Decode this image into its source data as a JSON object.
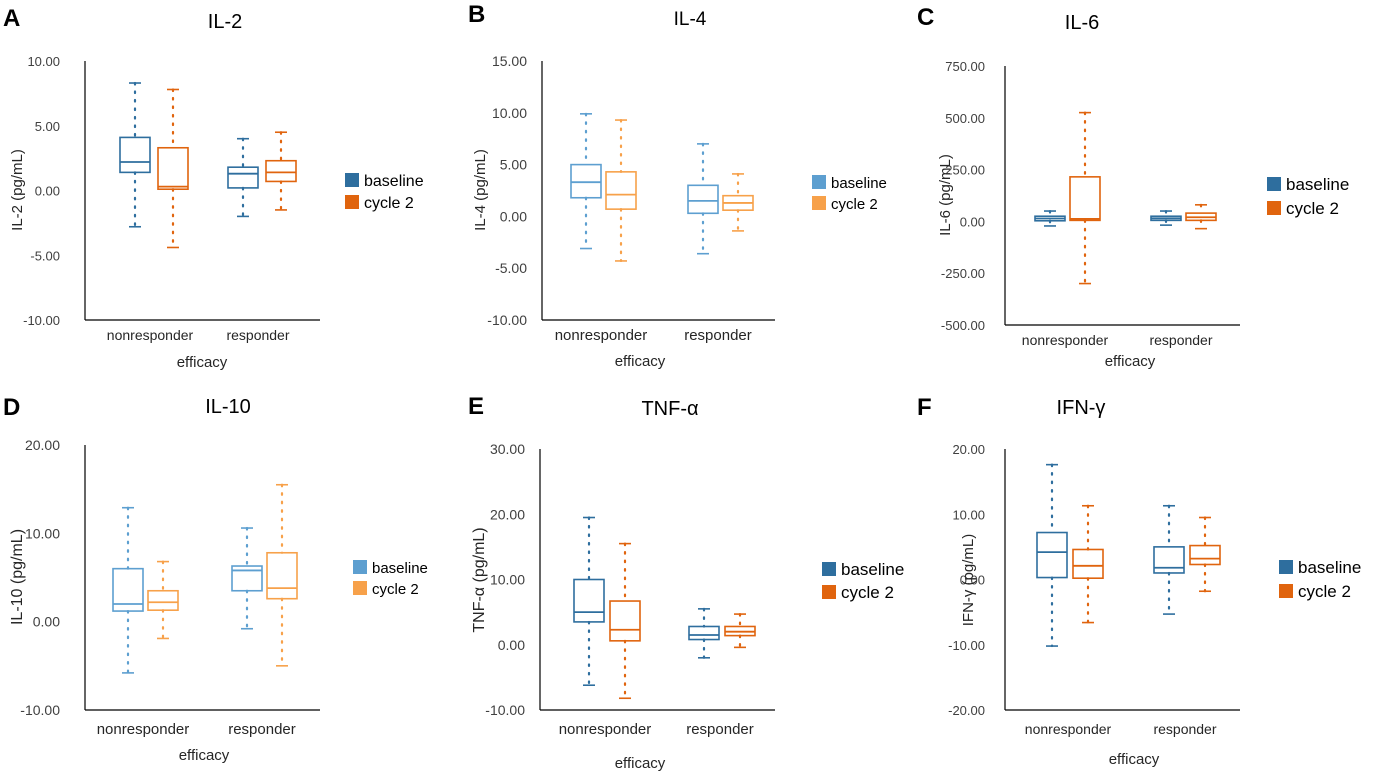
{
  "figure": {
    "panels": [
      "A",
      "B",
      "C",
      "D",
      "E",
      "F"
    ]
  },
  "colors": {
    "dark": {
      "baseline": "#2e6e9e",
      "cycle2": "#e0640e"
    },
    "light": {
      "baseline": "#5d9fd0",
      "cycle2": "#f7a14a"
    }
  },
  "chart_data": [
    {
      "panel": "A",
      "type": "boxplot",
      "title": "IL-2",
      "xlabel": "efficacy",
      "ylabel": "IL-2 (pg/mL)",
      "ylim": [
        -10,
        10
      ],
      "yticks": [
        "10.00",
        "5.00",
        "0.00",
        "-5.00",
        "-10.00"
      ],
      "categories": [
        "nonresponder",
        "responder"
      ],
      "legend": [
        "baseline",
        "cycle 2"
      ],
      "palette": "dark",
      "series": [
        {
          "name": "baseline",
          "boxes": [
            {
              "min": -2.8,
              "q1": 1.4,
              "median": 2.2,
              "q3": 4.1,
              "max": 8.3
            },
            {
              "min": -2.0,
              "q1": 0.2,
              "median": 1.3,
              "q3": 1.8,
              "max": 4.0
            }
          ]
        },
        {
          "name": "cycle 2",
          "boxes": [
            {
              "min": -4.4,
              "q1": 0.1,
              "median": 0.3,
              "q3": 3.3,
              "max": 7.8
            },
            {
              "min": -1.5,
              "q1": 0.7,
              "median": 1.4,
              "q3": 2.3,
              "max": 4.5
            }
          ]
        }
      ]
    },
    {
      "panel": "B",
      "type": "boxplot",
      "title": "IL-4",
      "xlabel": "efficacy",
      "ylabel": "IL-4 (pg/mL)",
      "ylim": [
        -10,
        15
      ],
      "yticks": [
        "15.00",
        "10.00",
        "5.00",
        "0.00",
        "-5.00",
        "-10.00"
      ],
      "categories": [
        "nonresponder",
        "responder"
      ],
      "legend": [
        "baseline",
        "cycle 2"
      ],
      "palette": "light",
      "series": [
        {
          "name": "baseline",
          "boxes": [
            {
              "min": -3.1,
              "q1": 1.8,
              "median": 3.3,
              "q3": 5.0,
              "max": 9.9
            },
            {
              "min": -3.6,
              "q1": 0.3,
              "median": 1.5,
              "q3": 3.0,
              "max": 7.0
            }
          ]
        },
        {
          "name": "cycle 2",
          "boxes": [
            {
              "min": -4.3,
              "q1": 0.7,
              "median": 2.1,
              "q3": 4.3,
              "max": 9.3
            },
            {
              "min": -1.4,
              "q1": 0.6,
              "median": 1.3,
              "q3": 2.0,
              "max": 4.1
            }
          ]
        }
      ]
    },
    {
      "panel": "C",
      "type": "boxplot",
      "title": "IL-6",
      "xlabel": "efficacy",
      "ylabel": "IL-6 (pg/mL)",
      "ylim": [
        -500,
        750
      ],
      "yticks": [
        "750.00",
        "500.00",
        "250.00",
        "0.00",
        "-250.00",
        "-500.00"
      ],
      "categories": [
        "nonresponder",
        "responder"
      ],
      "legend": [
        "baseline",
        "cycle 2"
      ],
      "palette": "dark",
      "series": [
        {
          "name": "baseline",
          "boxes": [
            {
              "min": -22,
              "q1": 3,
              "median": 14,
              "q3": 25,
              "max": 50
            },
            {
              "min": -18,
              "q1": 5,
              "median": 15,
              "q3": 25,
              "max": 50
            }
          ]
        },
        {
          "name": "cycle 2",
          "boxes": [
            {
              "min": -300,
              "q1": 5,
              "median": 12,
              "q3": 215,
              "max": 525
            },
            {
              "min": -35,
              "q1": 5,
              "median": 20,
              "q3": 40,
              "max": 80
            }
          ]
        }
      ]
    },
    {
      "panel": "D",
      "type": "boxplot",
      "title": "IL-10",
      "xlabel": "efficacy",
      "ylabel": "IL-10 (pg/mL)",
      "ylim": [
        -10,
        20
      ],
      "yticks": [
        "20.00",
        "10.00",
        "0.00",
        "-10.00"
      ],
      "categories": [
        "nonresponder",
        "responder"
      ],
      "legend": [
        "baseline",
        "cycle 2"
      ],
      "palette": "light",
      "series": [
        {
          "name": "baseline",
          "boxes": [
            {
              "min": -5.8,
              "q1": 1.2,
              "median": 2.0,
              "q3": 6.0,
              "max": 12.9
            },
            {
              "min": -0.8,
              "q1": 3.5,
              "median": 5.8,
              "q3": 6.3,
              "max": 10.6
            }
          ]
        },
        {
          "name": "cycle 2",
          "boxes": [
            {
              "min": -1.9,
              "q1": 1.3,
              "median": 2.2,
              "q3": 3.5,
              "max": 6.8
            },
            {
              "min": -5.0,
              "q1": 2.6,
              "median": 3.8,
              "q3": 7.8,
              "max": 15.5
            }
          ]
        }
      ]
    },
    {
      "panel": "E",
      "type": "boxplot",
      "title": "TNF-α",
      "xlabel": "efficacy",
      "ylabel": "TNF-α (pg/mL)",
      "ylim": [
        -10,
        30
      ],
      "yticks": [
        "30.00",
        "20.00",
        "10.00",
        "0.00",
        "-10.00"
      ],
      "categories": [
        "nonresponder",
        "responder"
      ],
      "legend": [
        "baseline",
        "cycle 2"
      ],
      "palette": "dark",
      "series": [
        {
          "name": "baseline",
          "boxes": [
            {
              "min": -6.2,
              "q1": 3.5,
              "median": 5.0,
              "q3": 10.0,
              "max": 19.5
            },
            {
              "min": -2.0,
              "q1": 0.8,
              "median": 1.5,
              "q3": 2.8,
              "max": 5.5
            }
          ]
        },
        {
          "name": "cycle 2",
          "boxes": [
            {
              "min": -8.2,
              "q1": 0.6,
              "median": 2.3,
              "q3": 6.7,
              "max": 15.5
            },
            {
              "min": -0.4,
              "q1": 1.4,
              "median": 2.0,
              "q3": 2.8,
              "max": 4.7
            }
          ]
        }
      ]
    },
    {
      "panel": "F",
      "type": "boxplot",
      "title": "IFN-γ",
      "xlabel": "efficacy",
      "ylabel": "IFN-γ (pg/mL)",
      "ylim": [
        -20,
        20
      ],
      "yticks": [
        "20.00",
        "10.00",
        "0.00",
        "-10.00",
        "-20.00"
      ],
      "categories": [
        "nonresponder",
        "responder"
      ],
      "legend": [
        "baseline",
        "cycle 2"
      ],
      "palette": "dark",
      "series": [
        {
          "name": "baseline",
          "boxes": [
            {
              "min": -10.2,
              "q1": 0.3,
              "median": 4.2,
              "q3": 7.2,
              "max": 17.6
            },
            {
              "min": -5.3,
              "q1": 1.0,
              "median": 1.8,
              "q3": 5.0,
              "max": 11.3
            }
          ]
        },
        {
          "name": "cycle 2",
          "boxes": [
            {
              "min": -6.6,
              "q1": 0.2,
              "median": 2.1,
              "q3": 4.6,
              "max": 11.3
            },
            {
              "min": -1.8,
              "q1": 2.3,
              "median": 3.2,
              "q3": 5.2,
              "max": 9.5
            }
          ]
        }
      ]
    }
  ]
}
